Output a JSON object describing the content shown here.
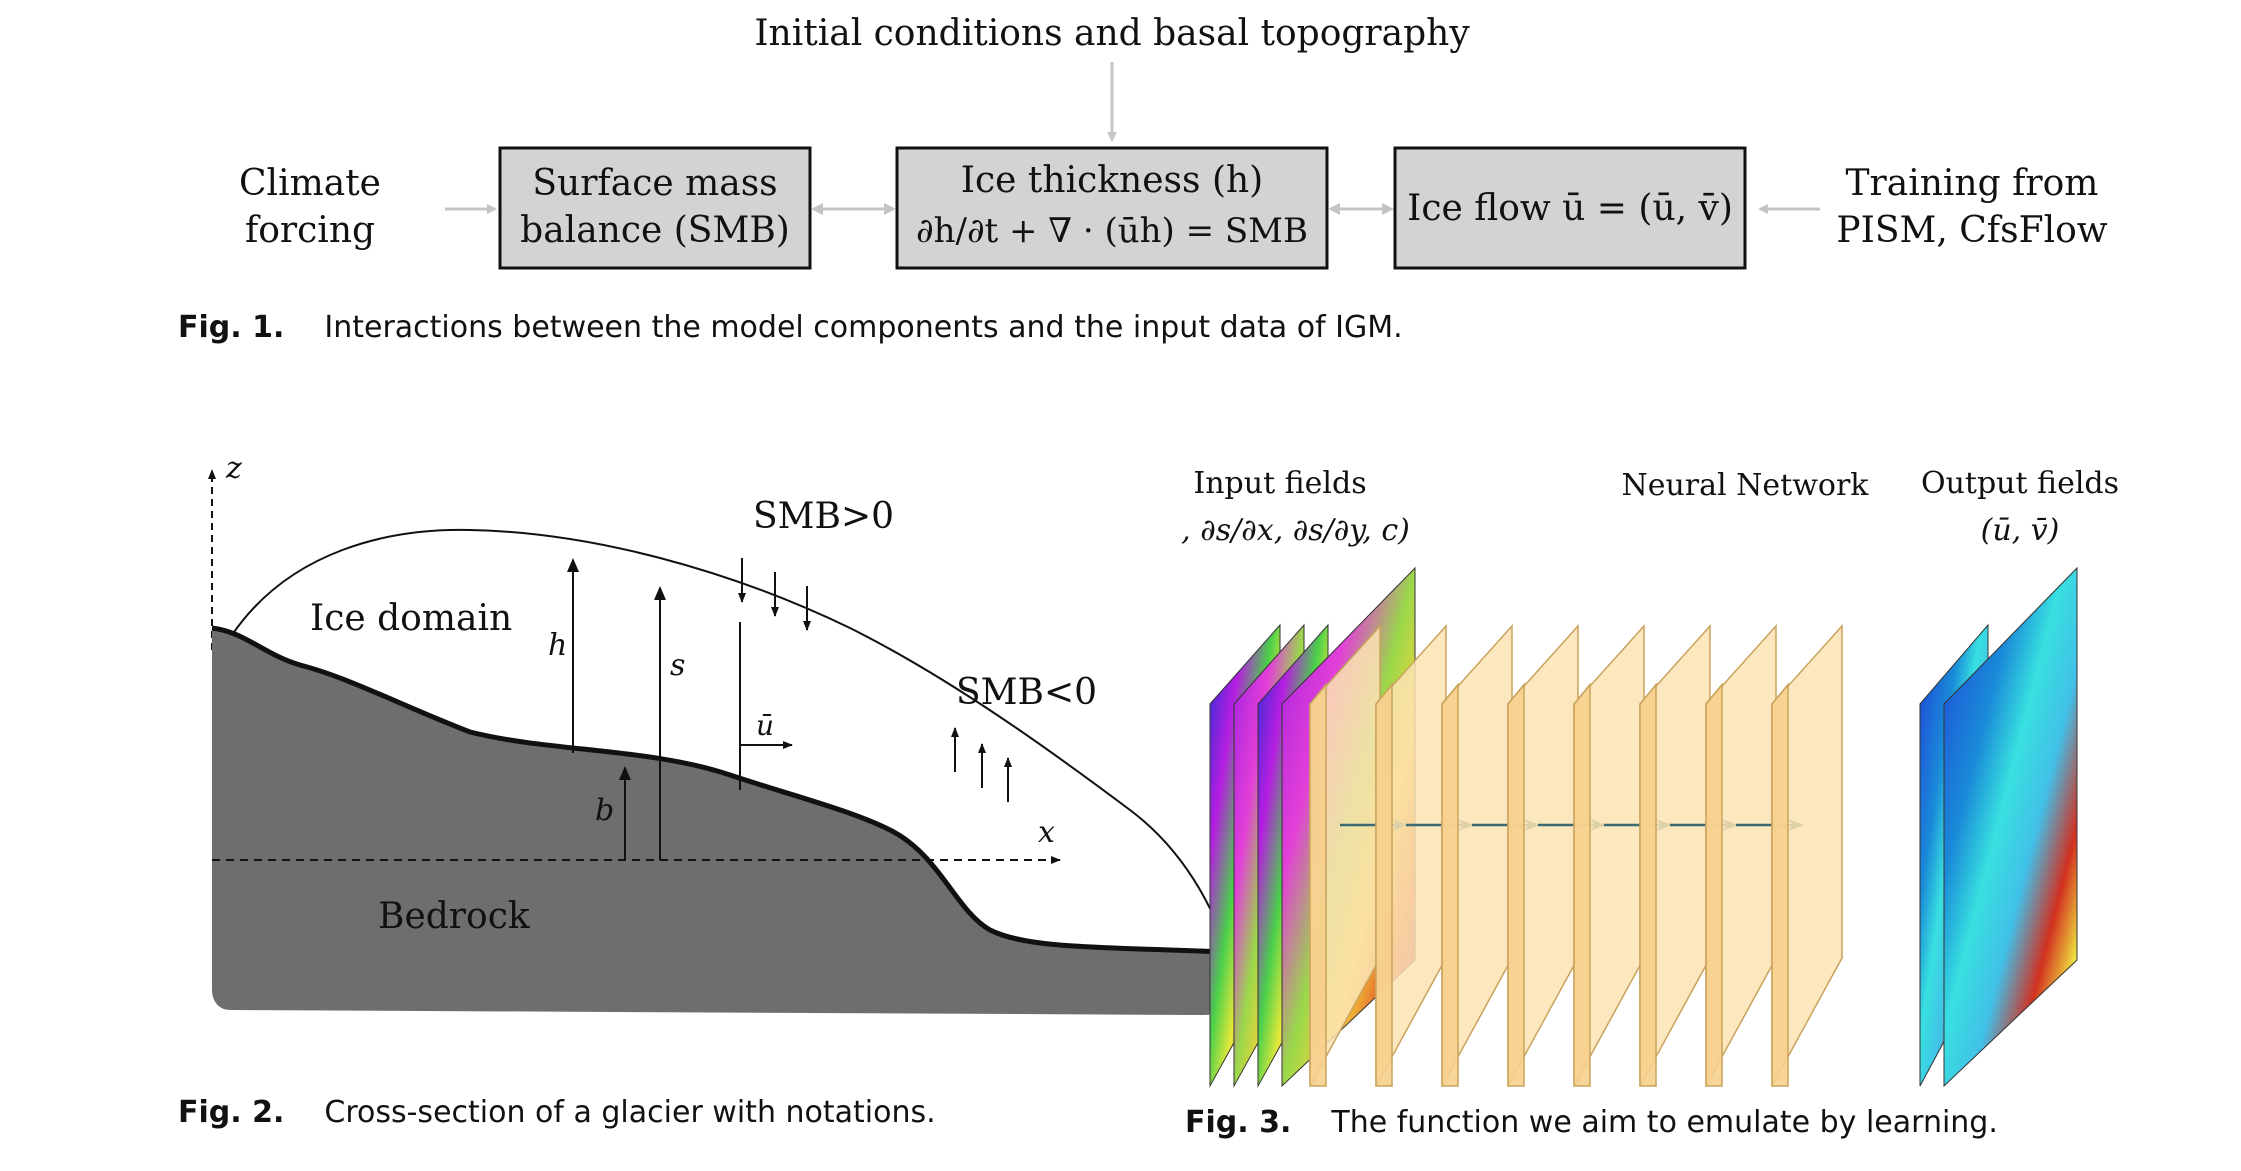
{
  "fig1": {
    "top_label": "Initial conditions and basal topography",
    "left_label": [
      "Climate",
      "forcing"
    ],
    "right_label": [
      "Training from",
      "PISM, CfsFlow"
    ],
    "boxes": [
      {
        "lines": [
          "Surface mass",
          "balance (SMB)"
        ]
      },
      {
        "lines": [
          "Ice thickness (h)",
          "∂h/∂t + ∇ · (ūh) = SMB"
        ]
      },
      {
        "lines": [
          "Ice flow ū = (ū, v̄)"
        ]
      }
    ],
    "caption_label": "Fig. 1.",
    "caption_text": "Interactions between the model components and the input data of IGM."
  },
  "fig2": {
    "label_z": "z",
    "label_x": "x",
    "label_h": "h",
    "label_s": "s",
    "label_b": "b",
    "label_u": "ū",
    "ice_domain": "Ice domain",
    "bedrock": "Bedrock",
    "smb_pos": "SMB>0",
    "smb_neg": "SMB<0",
    "caption_label": "Fig. 2.",
    "caption_text": "Cross-section of a glacier with notations."
  },
  "fig3": {
    "input_title": "Input fields",
    "input_vars": "(h, ∂s/∂x, ∂s/∂y, c)",
    "nn_title": "Neural Network",
    "output_title": "Output fields",
    "output_vars": "(ū, v̄)",
    "caption_label": "Fig. 3.",
    "caption_text": "The function we aim to emulate by learning."
  },
  "colors": {
    "box_fill": "#d3d3d3",
    "bedrock": "#6e6e6e",
    "layer_fill": "#fce3b4",
    "layer_stroke": "#c9a35c",
    "arrow_teal": "#3a6b72",
    "connector_gray": "#c4c4c4"
  }
}
